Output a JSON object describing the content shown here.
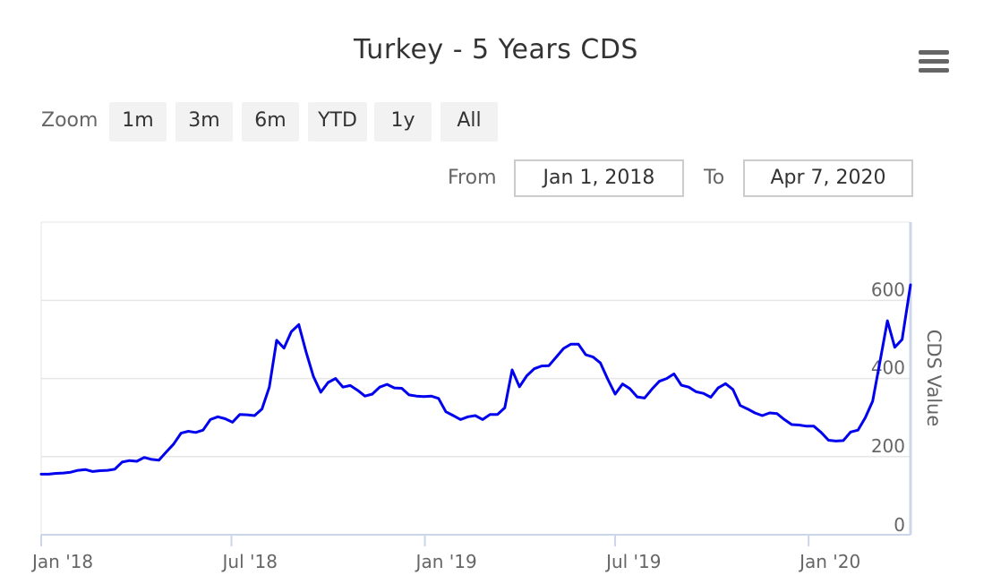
{
  "title": "Turkey - 5 Years CDS",
  "menu_icon": "hamburger-menu-icon",
  "zoom": {
    "label": "Zoom",
    "buttons": [
      "1m",
      "3m",
      "6m",
      "YTD",
      "1y",
      "All"
    ]
  },
  "range": {
    "from_label": "From",
    "from_value": "Jan 1, 2018",
    "to_label": "To",
    "to_value": "Apr 7, 2020"
  },
  "colors": {
    "series": "#0000ee",
    "grid": "#e6e6e6",
    "axis": "#ccd6eb"
  },
  "chart_data": {
    "type": "line",
    "ylabel": "CDS Value",
    "ylim": [
      0,
      800
    ],
    "y_ticks": [
      0,
      200,
      400,
      600
    ],
    "x_ticks": [
      "Jan '18",
      "Jul '18",
      "Jan '19",
      "Jul '19",
      "Jan '20"
    ],
    "x_range": [
      "2018-01-01",
      "2020-04-07"
    ],
    "grid": true,
    "series": [
      {
        "x": [
          "2018-01-01",
          "2018-01-08",
          "2018-01-15",
          "2018-01-22",
          "2018-01-29",
          "2018-02-05",
          "2018-02-12",
          "2018-02-19",
          "2018-02-26",
          "2018-03-05",
          "2018-03-12",
          "2018-03-19",
          "2018-03-26",
          "2018-04-02",
          "2018-04-09",
          "2018-04-16",
          "2018-04-23",
          "2018-04-30",
          "2018-05-07",
          "2018-05-14",
          "2018-05-21",
          "2018-05-28",
          "2018-06-04",
          "2018-06-11",
          "2018-06-18",
          "2018-06-25",
          "2018-07-02",
          "2018-07-09",
          "2018-07-16",
          "2018-07-23",
          "2018-07-30",
          "2018-08-06",
          "2018-08-13",
          "2018-08-20",
          "2018-08-27",
          "2018-09-03",
          "2018-09-10",
          "2018-09-17",
          "2018-09-24",
          "2018-10-01",
          "2018-10-08",
          "2018-10-15",
          "2018-10-22",
          "2018-10-29",
          "2018-11-05",
          "2018-11-12",
          "2018-11-19",
          "2018-11-26",
          "2018-12-03",
          "2018-12-10",
          "2018-12-17",
          "2018-12-24",
          "2018-12-31",
          "2019-01-07",
          "2019-01-14",
          "2019-01-21",
          "2019-01-28",
          "2019-02-04",
          "2019-02-11",
          "2019-02-18",
          "2019-02-25",
          "2019-03-04",
          "2019-03-11",
          "2019-03-18",
          "2019-03-25",
          "2019-04-01",
          "2019-04-08",
          "2019-04-15",
          "2019-04-22",
          "2019-04-29",
          "2019-05-06",
          "2019-05-13",
          "2019-05-20",
          "2019-05-27",
          "2019-06-03",
          "2019-06-10",
          "2019-06-17",
          "2019-06-24",
          "2019-07-01",
          "2019-07-08",
          "2019-07-15",
          "2019-07-22",
          "2019-07-29",
          "2019-08-05",
          "2019-08-12",
          "2019-08-19",
          "2019-08-26",
          "2019-09-02",
          "2019-09-09",
          "2019-09-16",
          "2019-09-23",
          "2019-09-30",
          "2019-10-07",
          "2019-10-14",
          "2019-10-21",
          "2019-10-28",
          "2019-11-04",
          "2019-11-11",
          "2019-11-18",
          "2019-11-25",
          "2019-12-02",
          "2019-12-09",
          "2019-12-16",
          "2019-12-23",
          "2019-12-30",
          "2020-01-06",
          "2020-01-13",
          "2020-01-20",
          "2020-01-27",
          "2020-02-03",
          "2020-02-10",
          "2020-02-17",
          "2020-02-24",
          "2020-03-02",
          "2020-03-09",
          "2020-03-16",
          "2020-03-23",
          "2020-03-30",
          "2020-04-07"
        ],
        "values": [
          155,
          155,
          157,
          158,
          160,
          165,
          167,
          162,
          164,
          165,
          168,
          186,
          190,
          188,
          198,
          193,
          191,
          212,
          232,
          260,
          265,
          262,
          268,
          295,
          302,
          297,
          288,
          308,
          307,
          305,
          322,
          378,
          498,
          478,
          520,
          538,
          468,
          405,
          365,
          390,
          400,
          378,
          382,
          370,
          355,
          360,
          378,
          385,
          376,
          375,
          358,
          355,
          354,
          355,
          349,
          315,
          305,
          295,
          302,
          305,
          295,
          308,
          308,
          325,
          422,
          379,
          407,
          425,
          432,
          433,
          455,
          477,
          488,
          488,
          461,
          455,
          440,
          398,
          360,
          386,
          374,
          353,
          350,
          373,
          393,
          400,
          412,
          383,
          378,
          366,
          362,
          352,
          376,
          387,
          372,
          331,
          322,
          312,
          305,
          312,
          310,
          295,
          282,
          281,
          278,
          278,
          262,
          242,
          240,
          241,
          263,
          268,
          300,
          342,
          445,
          548,
          480,
          500,
          640
        ]
      }
    ]
  }
}
